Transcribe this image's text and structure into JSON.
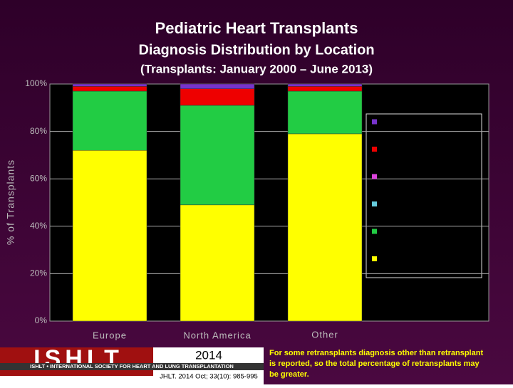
{
  "chart_data": {
    "type": "stacked_bar",
    "title": "Pediatric Heart Transplants",
    "subtitle": "Diagnosis Distribution by Location",
    "subtitle2": "(Transplants: January 2000 – June 2013)",
    "ylabel": "% of Transplants",
    "categories": [
      "Europe",
      "North America",
      "Other"
    ],
    "series": [
      {
        "color": "#ffff00",
        "values": [
          72,
          49,
          79
        ]
      },
      {
        "color": "#22cc44",
        "values": [
          25,
          42,
          18
        ]
      },
      {
        "color": "#66ccdd",
        "values": [
          0,
          0,
          0
        ]
      },
      {
        "color": "#dd44dd",
        "values": [
          0,
          0,
          0
        ]
      },
      {
        "color": "#ee0000",
        "values": [
          2,
          7,
          2
        ]
      },
      {
        "color": "#7733cc",
        "values": [
          1,
          2,
          1
        ]
      }
    ],
    "ylim": [
      0,
      100
    ],
    "yticks": [
      {
        "value": 0,
        "label": "0%"
      },
      {
        "value": 20,
        "label": "20%"
      },
      {
        "value": 40,
        "label": "40%"
      },
      {
        "value": 60,
        "label": "60%"
      },
      {
        "value": 80,
        "label": "80%"
      },
      {
        "value": 100,
        "label": "100%"
      }
    ],
    "grid": true,
    "logo": "ISHLT",
    "tagline": "ISHLT • INTERNATIONAL SOCIETY FOR HEART AND LUNG TRANSPLANTATION",
    "year": "2014",
    "citation": "JHLT. 2014 Oct; 33(10): 985-995",
    "footnote": [
      "For some retransplants diagnosis other than retransplant",
      "is reported, so the total percentage of retransplants may",
      "be greater."
    ]
  }
}
